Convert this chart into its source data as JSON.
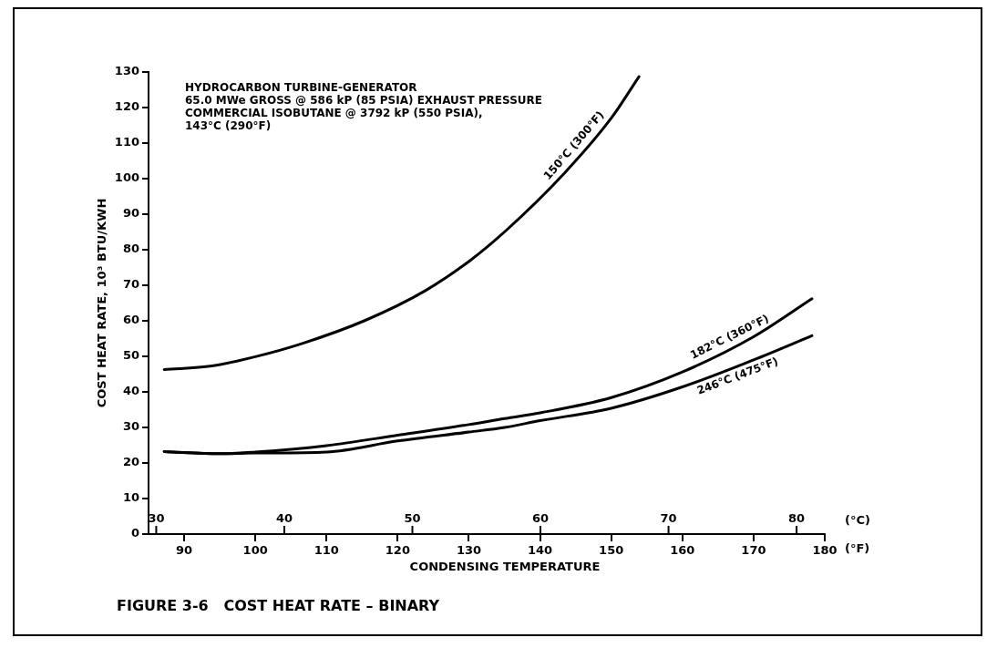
{
  "chart_data": {
    "type": "line",
    "title": "FIGURE 3-6   COST HEAT RATE – BINARY",
    "xlabel": "CONDENSING TEMPERATURE",
    "ylabel": "COST HEAT RATE, 10³ BTU/KWH",
    "x2label": "(°C)",
    "annotations": [
      "HYDROCARBON TURBINE-GENERATOR\n65.0 MWe GROSS @ 586 kP (85 PSIA) EXHAUST PRESSURE\nCOMMERCIAL ISOBUTANE @ 3792 kP (550 PSIA),\n143°C (290°F)",
      "(°F)"
    ],
    "xlim": [
      85,
      180
    ],
    "xticks": [
      90,
      100,
      110,
      120,
      130,
      140,
      150,
      160,
      170,
      180
    ],
    "x2lim": [
      29.4,
      82.2
    ],
    "x2ticks": [
      30,
      40,
      50,
      60,
      70,
      80
    ],
    "ylim": [
      0,
      130
    ],
    "yticks": [
      0,
      10,
      20,
      30,
      40,
      50,
      60,
      70,
      80,
      90,
      100,
      110,
      120,
      130
    ],
    "grid": false,
    "legend": false,
    "marker": "none",
    "line_style": "solid",
    "series": [
      {
        "name": "150°C (300°F)",
        "color": "#000000",
        "x": [
          87.2,
          93.9,
          100,
          106.7,
          115.3,
          123.9,
          130.2,
          135,
          143.4,
          150,
          153.9
        ],
        "values": [
          46.3,
          47.3,
          49.9,
          53.7,
          60,
          68.5,
          77,
          85,
          101.5,
          117,
          128.7
        ]
      },
      {
        "name": "182°C (360°F)",
        "color": "#000000",
        "x": [
          87.2,
          95,
          100,
          110,
          120,
          130,
          135,
          140,
          150,
          160,
          170,
          178.2
        ],
        "values": [
          23.2,
          22.6,
          23.1,
          24.9,
          27.8,
          30.8,
          32.5,
          34.1,
          38.4,
          45.6,
          55.5,
          66.2
        ]
      },
      {
        "name": "246°C (475°F)",
        "color": "#000000",
        "x": [
          87.2,
          95,
          100,
          110,
          120,
          130,
          135,
          140,
          150,
          160,
          170,
          178.2
        ],
        "values": [
          23.2,
          22.6,
          22.8,
          23.1,
          26.2,
          28.7,
          30,
          31.9,
          35.4,
          41.4,
          49,
          55.8
        ]
      }
    ]
  }
}
